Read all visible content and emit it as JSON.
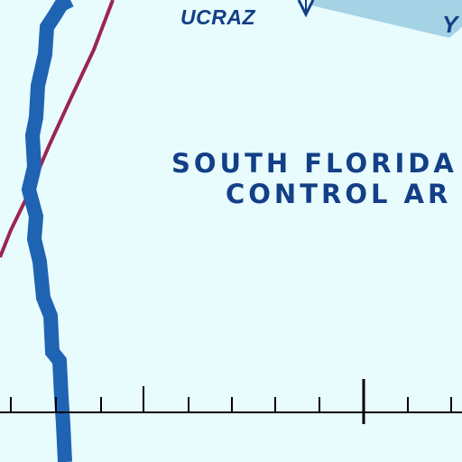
{
  "map": {
    "fix_name": "UCRAZ",
    "airway_label_partial": "Y",
    "area_label_line1": "SOUTH FLORIDA",
    "area_label_line2": "CONTROL AR",
    "colors": {
      "background": "#e8fbfd",
      "text": "#123f86",
      "boundary_blue": "#1f63b3",
      "route_maroon": "#9c2457",
      "airway_band": "#a6d2e6",
      "scale_black": "#000000"
    },
    "icons": [
      "waypoint-triangle-icon"
    ]
  }
}
